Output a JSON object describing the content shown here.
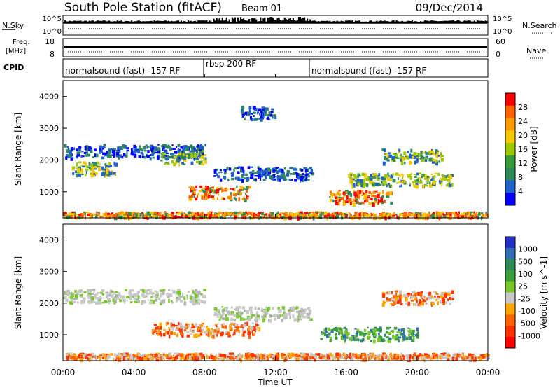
{
  "header": {
    "title": "South Pole Station (fitACF)",
    "beam": "Beam 01",
    "date": "09/Dec/2014"
  },
  "strip_panels": {
    "nsky_label": "N.Sky",
    "nsky_ticks": [
      "10^5",
      "10^0"
    ],
    "nsearch_label": "N.Search",
    "nsearch_ticks": [
      "10^5",
      "10^0"
    ],
    "freq_label_1": "Freq.",
    "freq_label_2": "[MHz]",
    "freq_ticks": [
      "18",
      "8"
    ],
    "nave_label": "Nave",
    "nave_ticks": [
      "60",
      "0"
    ],
    "cpid_label": "CPID",
    "cpid_segments": [
      {
        "label": "normalsound (fast) -157 RF",
        "start_hour": 0,
        "end_hour": 8
      },
      {
        "label": "rbsp 200 RF",
        "start_hour": 8,
        "end_hour": 14
      },
      {
        "label": "normalsound (fast) -157 RF",
        "start_hour": 14,
        "end_hour": 24
      }
    ]
  },
  "x_axis": {
    "label": "Time UT",
    "ticks": [
      "00:00",
      "04:00",
      "08:00",
      "12:00",
      "16:00",
      "20:00",
      "00:00"
    ]
  },
  "chart_data": [
    {
      "type": "heatmap",
      "name": "power-panel",
      "ylabel": "Slant Range [km]",
      "yticks": [
        "4000",
        "3000",
        "2000",
        "1000"
      ],
      "ylim": [
        180,
        4500
      ],
      "xlim_hours": [
        0,
        24
      ],
      "colorbar_label": "Power [dB]",
      "colorbar_ticks": [
        "28",
        "24",
        "20",
        "16",
        "12",
        "8",
        "4"
      ],
      "colorbar_colors": [
        "#ff0000",
        "#ff6400",
        "#ff9b00",
        "#f5c800",
        "#9ec800",
        "#3a9b3a",
        "#2e8b57",
        "#1e64c8",
        "#0000ff"
      ],
      "bands": [
        {
          "start_hour": 0.0,
          "end_hour": 8.0,
          "range_km": 2300,
          "level": "low"
        },
        {
          "start_hour": 0.5,
          "end_hour": 3.0,
          "range_km": 1750,
          "level": "mid"
        },
        {
          "start_hour": 5.5,
          "end_hour": 8.0,
          "range_km": 2100,
          "level": "mid"
        },
        {
          "start_hour": 7.0,
          "end_hour": 10.5,
          "range_km": 1000,
          "level": "high"
        },
        {
          "start_hour": 8.5,
          "end_hour": 14.0,
          "range_km": 1600,
          "level": "low"
        },
        {
          "start_hour": 10.0,
          "end_hour": 12.0,
          "range_km": 3500,
          "level": "low"
        },
        {
          "start_hour": 15.0,
          "end_hour": 18.5,
          "range_km": 850,
          "level": "high"
        },
        {
          "start_hour": 16.0,
          "end_hour": 22.0,
          "range_km": 1400,
          "level": "mid"
        },
        {
          "start_hour": 18.0,
          "end_hour": 21.5,
          "range_km": 2150,
          "level": "mid"
        },
        {
          "start_hour": 0.0,
          "end_hour": 24.0,
          "range_km": 300,
          "level": "high"
        }
      ]
    },
    {
      "type": "heatmap",
      "name": "velocity-panel",
      "ylabel": "Slant Range [km]",
      "yticks": [
        "4000",
        "3000",
        "2000",
        "1000"
      ],
      "ylim": [
        180,
        4500
      ],
      "xlim_hours": [
        0,
        24
      ],
      "colorbar_label": "Velocity [m s^-1]",
      "colorbar_ticks": [
        "1000",
        "500",
        "100",
        "25",
        "-25",
        "-100",
        "-500",
        "-1000"
      ],
      "colorbar_colors": [
        "#2030c8",
        "#306eb4",
        "#2e8b57",
        "#3ca03c",
        "#78c828",
        "#c8c8c8",
        "#ffa500",
        "#ff6400",
        "#ff3200",
        "#ff0000"
      ],
      "bands": [
        {
          "start_hour": 0.0,
          "end_hour": 8.0,
          "range_km": 2250,
          "level": "neutral"
        },
        {
          "start_hour": 5.0,
          "end_hour": 11.0,
          "range_km": 1200,
          "level": "away"
        },
        {
          "start_hour": 8.5,
          "end_hour": 14.0,
          "range_km": 1700,
          "level": "neutral"
        },
        {
          "start_hour": 14.5,
          "end_hour": 20.0,
          "range_km": 1050,
          "level": "toward"
        },
        {
          "start_hour": 18.0,
          "end_hour": 22.0,
          "range_km": 2200,
          "level": "away"
        },
        {
          "start_hour": 0.0,
          "end_hour": 24.0,
          "range_km": 350,
          "level": "away"
        }
      ]
    }
  ]
}
